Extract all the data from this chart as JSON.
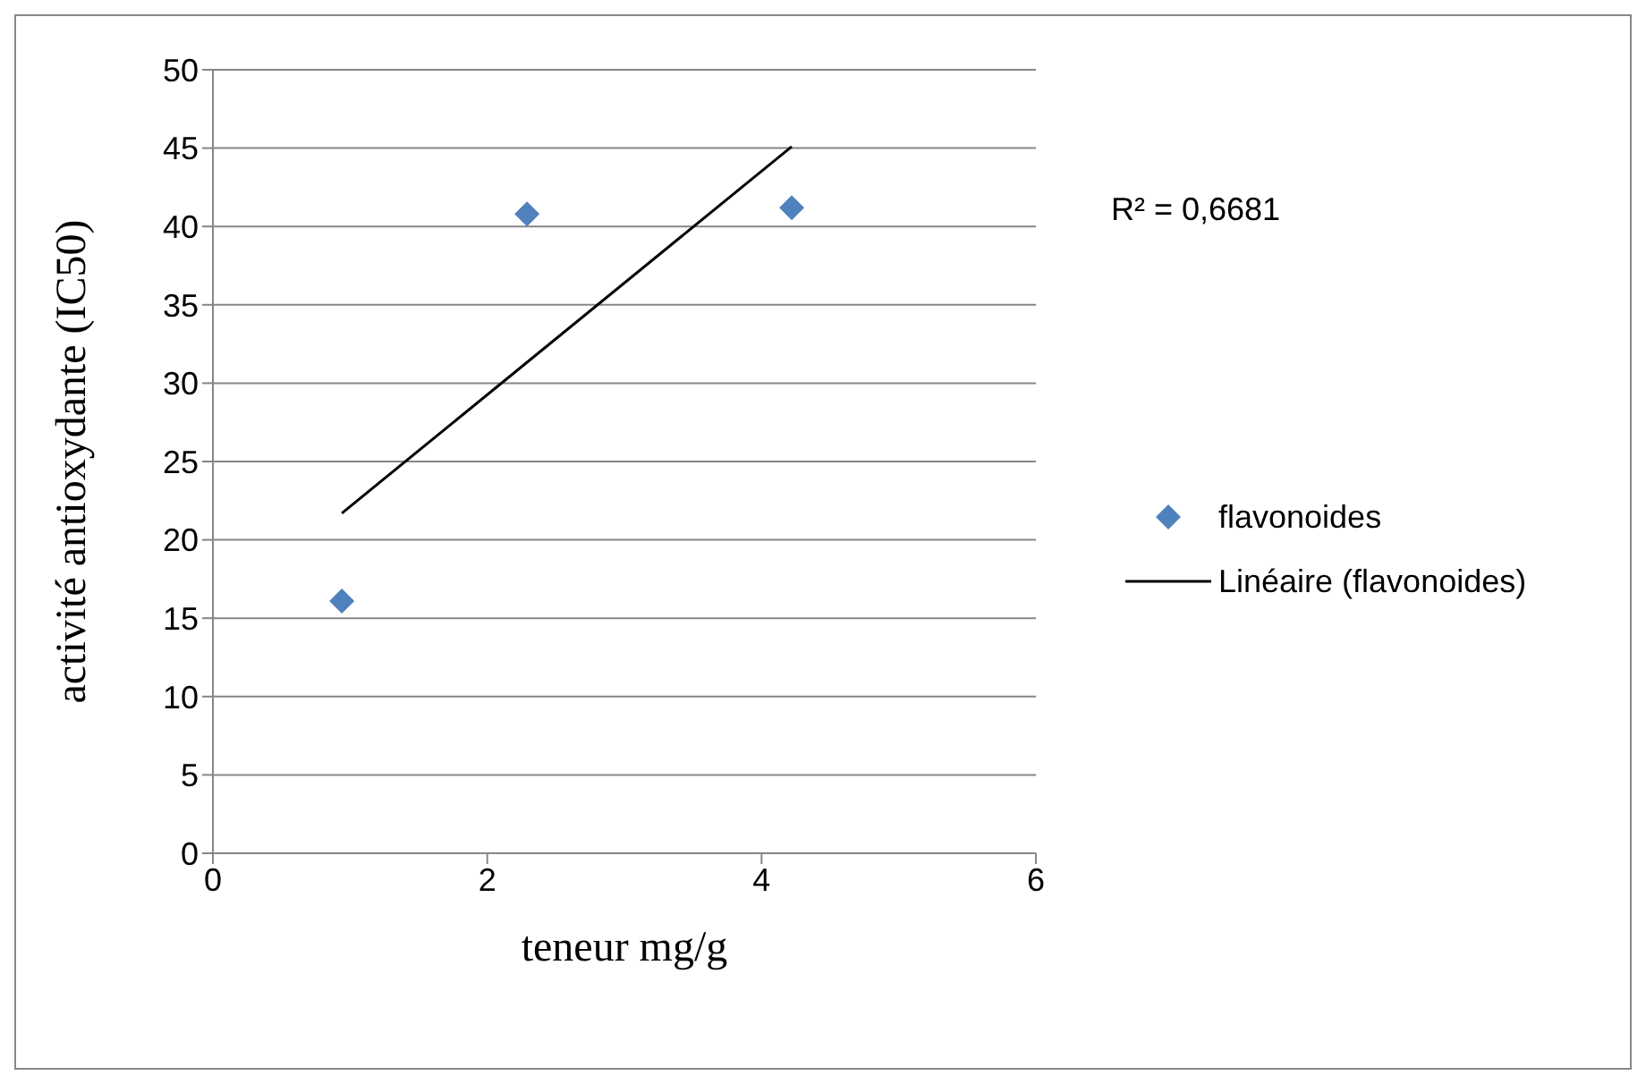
{
  "chart_data": {
    "type": "scatter",
    "xlabel": "teneur mg/g",
    "ylabel": "activité antioxydante (IC50)",
    "xlim": [
      0,
      6
    ],
    "xticks": [
      0,
      2,
      4,
      6
    ],
    "ylim": [
      0,
      50
    ],
    "yticks": [
      0,
      5,
      10,
      15,
      20,
      25,
      30,
      35,
      40,
      45,
      50
    ],
    "grid": "y",
    "legend": "right",
    "marker": "diamond",
    "annotations": [
      "R² = 0,6681"
    ],
    "series": [
      {
        "name": "flavonoides",
        "color": "#4f81bd",
        "x": [
          0.94,
          2.29,
          4.22
        ],
        "values": [
          16.1,
          40.8,
          41.2
        ]
      },
      {
        "name": "Linéaire (flavonoides)",
        "type": "line",
        "color": "#000000",
        "marker": "none",
        "line_style": "solid",
        "x": [
          0.94,
          4.22
        ],
        "values": [
          21.7,
          45.1
        ]
      }
    ]
  }
}
